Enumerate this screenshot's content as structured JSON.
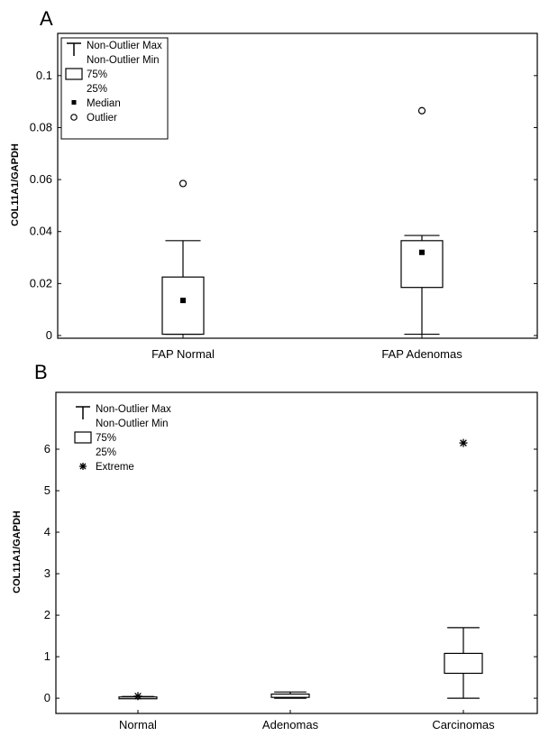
{
  "chart_data": [
    {
      "type": "box",
      "panel_label": "A",
      "ylabel": "COL11A1/GAPDH",
      "ylim": [
        0,
        0.11
      ],
      "yticks": [
        0,
        0.02,
        0.04,
        0.06,
        0.08,
        0.1
      ],
      "ytick_labels": [
        "0",
        "0.02",
        "0.04",
        "0.06",
        "0.08",
        "0.1"
      ],
      "categories": [
        "FAP Normal",
        "FAP Adenomas"
      ],
      "boxes": [
        {
          "category": "FAP Normal",
          "min": 0.0005,
          "q1": 0.0005,
          "median": 0.0135,
          "q3": 0.0225,
          "max": 0.0365,
          "outliers": [
            0.0585
          ],
          "extremes": []
        },
        {
          "category": "FAP Adenomas",
          "min": 0.0005,
          "q1": 0.0185,
          "median": 0.032,
          "q3": 0.0365,
          "max": 0.0385,
          "outliers": [
            0.0865
          ],
          "extremes": []
        }
      ],
      "legend": {
        "placement": "top-left",
        "items": [
          {
            "symbol": "whisker",
            "label": "Non-Outlier Max"
          },
          {
            "symbol": "",
            "label": "Non-Outlier Min"
          },
          {
            "symbol": "box",
            "label": "75%"
          },
          {
            "symbol": "",
            "label": "25%"
          },
          {
            "symbol": "median",
            "label": "Median"
          },
          {
            "symbol": "outlier",
            "label": "Outlier"
          }
        ]
      }
    },
    {
      "type": "box",
      "panel_label": "B",
      "ylabel": "COL11A1/GAPDH",
      "ylim": [
        -0.15,
        7
      ],
      "yticks": [
        0,
        1,
        2,
        3,
        4,
        5,
        6
      ],
      "ytick_labels": [
        "0",
        "1",
        "2",
        "3",
        "4",
        "5",
        "6"
      ],
      "categories": [
        "Normal",
        "Adenomas",
        "Carcinomas"
      ],
      "boxes": [
        {
          "category": "Normal",
          "min": 0.0,
          "q1": 0.01,
          "median": null,
          "q3": 0.03,
          "max": 0.04,
          "outliers": [],
          "extremes": [
            0.05
          ]
        },
        {
          "category": "Adenomas",
          "min": 0.0,
          "q1": 0.02,
          "median": null,
          "q3": 0.1,
          "max": 0.15,
          "outliers": [],
          "extremes": []
        },
        {
          "category": "Carcinomas",
          "min": 0.0,
          "q1": 0.6,
          "median": null,
          "q3": 1.08,
          "max": 1.7,
          "outliers": [],
          "extremes": [
            6.15
          ]
        }
      ],
      "legend": {
        "placement": "top-left",
        "items": [
          {
            "symbol": "whisker",
            "label": "Non-Outlier Max"
          },
          {
            "symbol": "",
            "label": "Non-Outlier Min"
          },
          {
            "symbol": "box",
            "label": "75%"
          },
          {
            "symbol": "",
            "label": "25%"
          },
          {
            "symbol": "extreme",
            "label": "Extreme"
          }
        ]
      }
    }
  ]
}
